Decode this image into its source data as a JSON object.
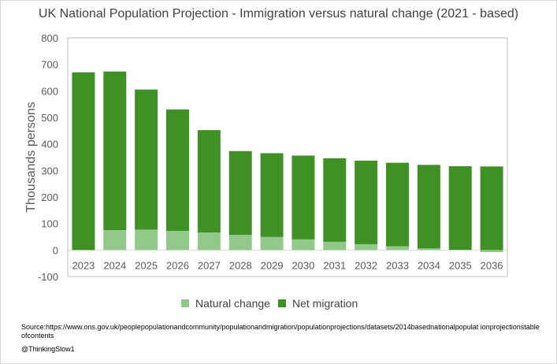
{
  "chart_data": {
    "type": "bar",
    "stacked": true,
    "title": "UK National Population Projection - Immigration versus natural change (2021 - based)",
    "xlabel": "",
    "ylabel": "Thousands persons",
    "ylim": [
      -100,
      800
    ],
    "yticks": [
      -100,
      0,
      100,
      200,
      300,
      400,
      500,
      600,
      700,
      800
    ],
    "grid": false,
    "legend_position": "bottom",
    "categories": [
      "2023",
      "2024",
      "2025",
      "2026",
      "2027",
      "2028",
      "2029",
      "2030",
      "2031",
      "2032",
      "2033",
      "2034",
      "2035",
      "2036"
    ],
    "series": [
      {
        "name": "Natural change",
        "color": "#92c98b",
        "values": [
          0,
          75,
          77,
          72,
          66,
          57,
          49,
          40,
          31,
          22,
          14,
          6,
          1,
          -8
        ]
      },
      {
        "name": "Net migration",
        "color": "#3f9126",
        "values": [
          670,
          598,
          528,
          458,
          386,
          316,
          316,
          316,
          315,
          315,
          315,
          315,
          315,
          315
        ]
      }
    ]
  },
  "footer": {
    "source": "Source:https://www.ons.gov.uk/peoplepopulationandcommunity/populationandmigration/populationprojections/datasets/2014basednationalpopulat ionprojectionstableofcontents",
    "credit": "@ThinkingSlow1"
  }
}
